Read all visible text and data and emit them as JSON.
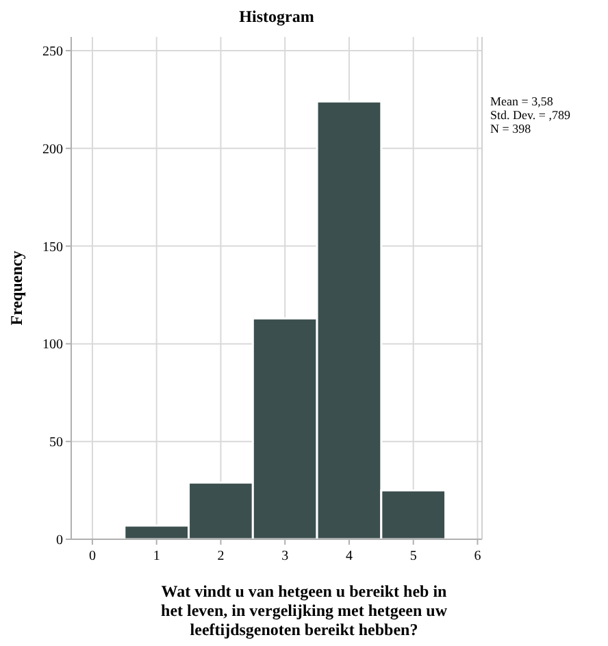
{
  "chart_data": {
    "type": "histogram",
    "title": "Histogram",
    "xlabel": "Wat vindt u van hetgeen u bereikt heb in het leven, in vergelijking met hetgeen uw leeftijdsgenoten bereikt hebben?",
    "ylabel": "Frequency",
    "bins": [
      0.5,
      1.5,
      2.5,
      3.5,
      4.5,
      5.5
    ],
    "values": [
      7,
      29,
      113,
      224,
      25
    ],
    "color": "#3b4f4e",
    "xlim": [
      -0.33,
      6.07
    ],
    "xticks": [
      0,
      1,
      2,
      3,
      4,
      5,
      6
    ],
    "ylim": [
      0,
      257
    ],
    "yticks": [
      0,
      50,
      100,
      150,
      200,
      250
    ],
    "grid": true,
    "annotations": [
      "Mean = 3,58",
      "Std. Dev. = ,789",
      "N = 398"
    ]
  }
}
